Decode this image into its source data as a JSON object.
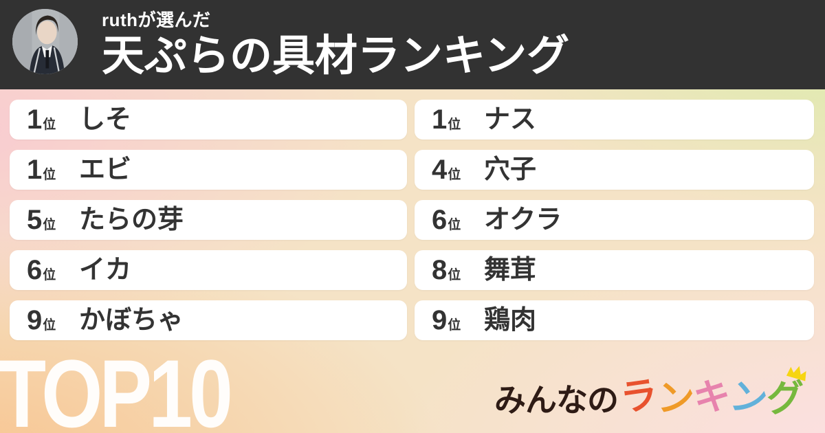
{
  "header": {
    "subtitle": "ruthが選んだ",
    "title": "天ぷらの具材ランキング"
  },
  "ranking": {
    "rank_suffix": "位",
    "left_column": [
      {
        "rank": "1",
        "name": "しそ"
      },
      {
        "rank": "1",
        "name": "エビ"
      },
      {
        "rank": "5",
        "name": "たらの芽"
      },
      {
        "rank": "6",
        "name": "イカ"
      },
      {
        "rank": "9",
        "name": "かぼちゃ"
      }
    ],
    "right_column": [
      {
        "rank": "1",
        "name": "ナス"
      },
      {
        "rank": "4",
        "name": "穴子"
      },
      {
        "rank": "6",
        "name": "オクラ"
      },
      {
        "rank": "8",
        "name": "舞茸"
      },
      {
        "rank": "9",
        "name": "鶏肉"
      }
    ]
  },
  "footer": {
    "top_label": "TOP10",
    "logo": {
      "prefix": "みんなの",
      "prefix_color": "#2e1b15",
      "colored": [
        {
          "char": "ラ",
          "color": "#e8522e"
        },
        {
          "char": "ン",
          "color": "#ef9a28"
        },
        {
          "char": "キ",
          "color": "#e783ad"
        },
        {
          "char": "ン",
          "color": "#62b1da"
        },
        {
          "char": "グ",
          "color": "#76b83e"
        }
      ],
      "crown_color": "#f6d512"
    }
  },
  "colors": {
    "header_background": "#323232",
    "card_background": "#ffffff",
    "card_text": "#333333",
    "top10_text": "#ffffff",
    "gradient_top_left": "#f9cbd1",
    "gradient_top_right": "#d7eda6",
    "gradient_bottom_left": "#f8c48f",
    "gradient_bottom_right": "#fcdfe4"
  }
}
